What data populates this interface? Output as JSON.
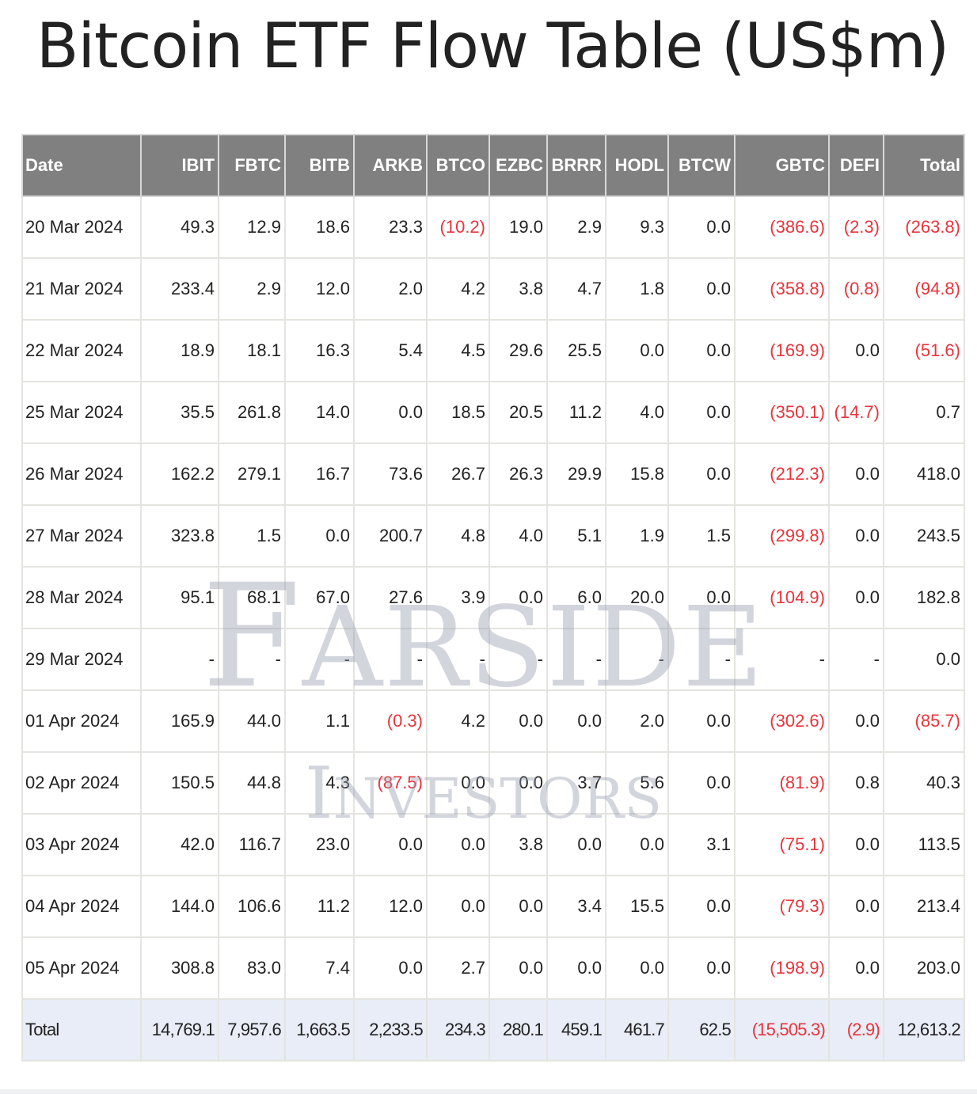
{
  "title": "Bitcoin ETF Flow Table (US$m)",
  "watermark": {
    "line1": "FARSIDE",
    "line2": "INVESTORS"
  },
  "colors": {
    "header_bg": "#808080",
    "negative": "#e8343c",
    "total_row_bg": "#e8edf7"
  },
  "table": {
    "columns": [
      "Date",
      "IBIT",
      "FBTC",
      "BITB",
      "ARKB",
      "BTCO",
      "EZBC",
      "BRRR",
      "HODL",
      "BTCW",
      "GBTC",
      "DEFI",
      "Total"
    ],
    "rows": [
      [
        "20 Mar 2024",
        "49.3",
        "12.9",
        "18.6",
        "23.3",
        "(10.2)",
        "19.0",
        "2.9",
        "9.3",
        "0.0",
        "(386.6)",
        "(2.3)",
        "(263.8)"
      ],
      [
        "21 Mar 2024",
        "233.4",
        "2.9",
        "12.0",
        "2.0",
        "4.2",
        "3.8",
        "4.7",
        "1.8",
        "0.0",
        "(358.8)",
        "(0.8)",
        "(94.8)"
      ],
      [
        "22 Mar 2024",
        "18.9",
        "18.1",
        "16.3",
        "5.4",
        "4.5",
        "29.6",
        "25.5",
        "0.0",
        "0.0",
        "(169.9)",
        "0.0",
        "(51.6)"
      ],
      [
        "25 Mar 2024",
        "35.5",
        "261.8",
        "14.0",
        "0.0",
        "18.5",
        "20.5",
        "11.2",
        "4.0",
        "0.0",
        "(350.1)",
        "(14.7)",
        "0.7"
      ],
      [
        "26 Mar 2024",
        "162.2",
        "279.1",
        "16.7",
        "73.6",
        "26.7",
        "26.3",
        "29.9",
        "15.8",
        "0.0",
        "(212.3)",
        "0.0",
        "418.0"
      ],
      [
        "27 Mar 2024",
        "323.8",
        "1.5",
        "0.0",
        "200.7",
        "4.8",
        "4.0",
        "5.1",
        "1.9",
        "1.5",
        "(299.8)",
        "0.0",
        "243.5"
      ],
      [
        "28 Mar 2024",
        "95.1",
        "68.1",
        "67.0",
        "27.6",
        "3.9",
        "0.0",
        "6.0",
        "20.0",
        "0.0",
        "(104.9)",
        "0.0",
        "182.8"
      ],
      [
        "29 Mar 2024",
        "-",
        "-",
        "-",
        "-",
        "-",
        "-",
        "-",
        "-",
        "-",
        "-",
        "-",
        "0.0"
      ],
      [
        "01 Apr 2024",
        "165.9",
        "44.0",
        "1.1",
        "(0.3)",
        "4.2",
        "0.0",
        "0.0",
        "2.0",
        "0.0",
        "(302.6)",
        "0.0",
        "(85.7)"
      ],
      [
        "02 Apr 2024",
        "150.5",
        "44.8",
        "4.3",
        "(87.5)",
        "0.0",
        "0.0",
        "3.7",
        "5.6",
        "0.0",
        "(81.9)",
        "0.8",
        "40.3"
      ],
      [
        "03 Apr 2024",
        "42.0",
        "116.7",
        "23.0",
        "0.0",
        "0.0",
        "3.8",
        "0.0",
        "0.0",
        "3.1",
        "(75.1)",
        "0.0",
        "113.5"
      ],
      [
        "04 Apr 2024",
        "144.0",
        "106.6",
        "11.2",
        "12.0",
        "0.0",
        "0.0",
        "3.4",
        "15.5",
        "0.0",
        "(79.3)",
        "0.0",
        "213.4"
      ],
      [
        "05 Apr 2024",
        "308.8",
        "83.0",
        "7.4",
        "0.0",
        "2.7",
        "0.0",
        "0.0",
        "0.0",
        "0.0",
        "(198.9)",
        "0.0",
        "203.0"
      ]
    ],
    "total": [
      "Total",
      "14,769.1",
      "7,957.6",
      "1,663.5",
      "2,233.5",
      "234.3",
      "280.1",
      "459.1",
      "461.7",
      "62.5",
      "(15,505.3)",
      "(2.9)",
      "12,613.2"
    ]
  }
}
